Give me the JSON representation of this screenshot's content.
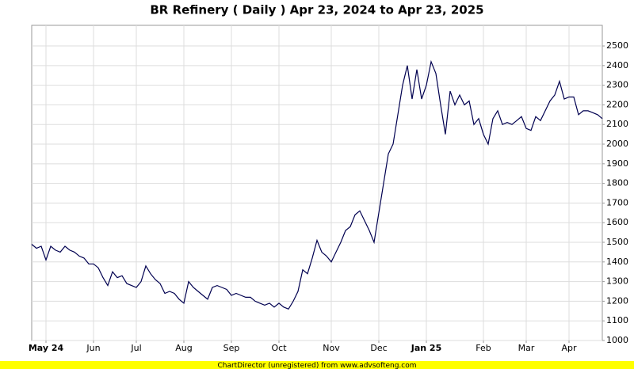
{
  "chart_data": {
    "type": "line",
    "title": "BR Refinery ( Daily ) Apr 23, 2024 to Apr 23, 2025",
    "footer": "ChartDirector (unregistered) from www.advsofteng.com",
    "categories": [
      null,
      null,
      null,
      "May 24",
      null,
      null,
      null,
      null,
      null,
      null,
      null,
      null,
      null,
      "Jun",
      null,
      null,
      null,
      null,
      null,
      null,
      null,
      null,
      "Jul",
      null,
      null,
      null,
      null,
      null,
      null,
      null,
      null,
      null,
      "Aug",
      null,
      null,
      null,
      null,
      null,
      null,
      null,
      null,
      null,
      "Sep",
      null,
      null,
      null,
      null,
      null,
      null,
      null,
      null,
      null,
      "Oct",
      null,
      null,
      null,
      null,
      null,
      null,
      null,
      null,
      null,
      null,
      "Nov",
      null,
      null,
      null,
      null,
      null,
      null,
      null,
      null,
      null,
      "Dec",
      null,
      null,
      null,
      null,
      null,
      null,
      null,
      null,
      null,
      "Jan 25",
      null,
      null,
      null,
      null,
      null,
      null,
      null,
      null,
      null,
      null,
      null,
      "Feb",
      null,
      null,
      null,
      null,
      null,
      null,
      null,
      null,
      "Mar",
      null,
      null,
      null,
      null,
      null,
      null,
      null,
      null,
      "Apr",
      null,
      null,
      null,
      null,
      null,
      null,
      null
    ],
    "series": [
      {
        "color": "#000050",
        "values": [
          1490,
          1470,
          1480,
          1410,
          1480,
          1460,
          1450,
          1480,
          1460,
          1450,
          1430,
          1420,
          1390,
          1390,
          1370,
          1320,
          1280,
          1350,
          1320,
          1330,
          1290,
          1280,
          1270,
          1300,
          1380,
          1340,
          1310,
          1290,
          1240,
          1250,
          1240,
          1210,
          1190,
          1300,
          1270,
          1250,
          1230,
          1210,
          1270,
          1280,
          1270,
          1260,
          1230,
          1240,
          1230,
          1220,
          1220,
          1200,
          1190,
          1180,
          1190,
          1170,
          1190,
          1170,
          1160,
          1200,
          1250,
          1360,
          1340,
          1420,
          1510,
          1450,
          1430,
          1400,
          1450,
          1500,
          1560,
          1580,
          1640,
          1660,
          1610,
          1560,
          1500,
          1650,
          1800,
          1950,
          2000,
          2150,
          2300,
          2400,
          2230,
          2380,
          2230,
          2300,
          2420,
          2360,
          2200,
          2050,
          2270,
          2200,
          2250,
          2200,
          2220,
          2100,
          2130,
          2050,
          2000,
          2130,
          2170,
          2100,
          2110,
          2100,
          2120,
          2140,
          2080,
          2070,
          2140,
          2120,
          2170,
          2220,
          2250,
          2320,
          2230,
          2240,
          2240,
          2150,
          2170,
          2170,
          2160,
          2150,
          2130
        ]
      }
    ],
    "ylim": [
      1000,
      2605
    ],
    "yticks": [
      1000,
      1100,
      1200,
      1300,
      1400,
      1500,
      1600,
      1700,
      1800,
      1900,
      2000,
      2100,
      2200,
      2300,
      2400,
      2500
    ],
    "grid": true
  }
}
